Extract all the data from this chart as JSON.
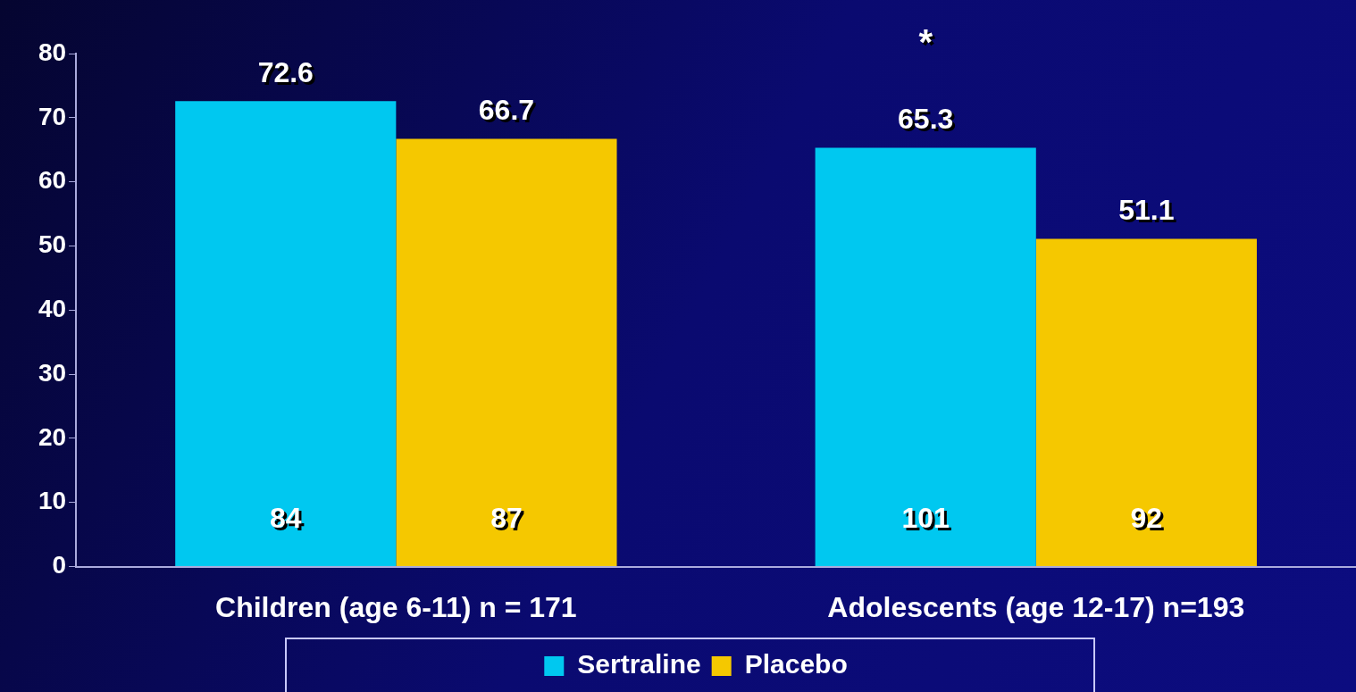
{
  "chart_data": {
    "type": "bar",
    "categories": [
      "Children (age 6-11) n = 171",
      "Adolescents (age 12-17) n=193"
    ],
    "series": [
      {
        "name": "Sertraline",
        "color": "#00c8f0",
        "values": [
          72.6,
          65.3
        ]
      },
      {
        "name": "Placebo",
        "color": "#f5c800",
        "values": [
          66.7,
          51.1
        ]
      }
    ],
    "ylim": [
      0,
      80
    ],
    "yticks": [
      0,
      10,
      20,
      30,
      40,
      50,
      60,
      70,
      80
    ],
    "grid": false,
    "data_labels": true,
    "legend": "bottom",
    "annotations": [
      "84",
      "87",
      "101",
      "92",
      "*"
    ]
  }
}
